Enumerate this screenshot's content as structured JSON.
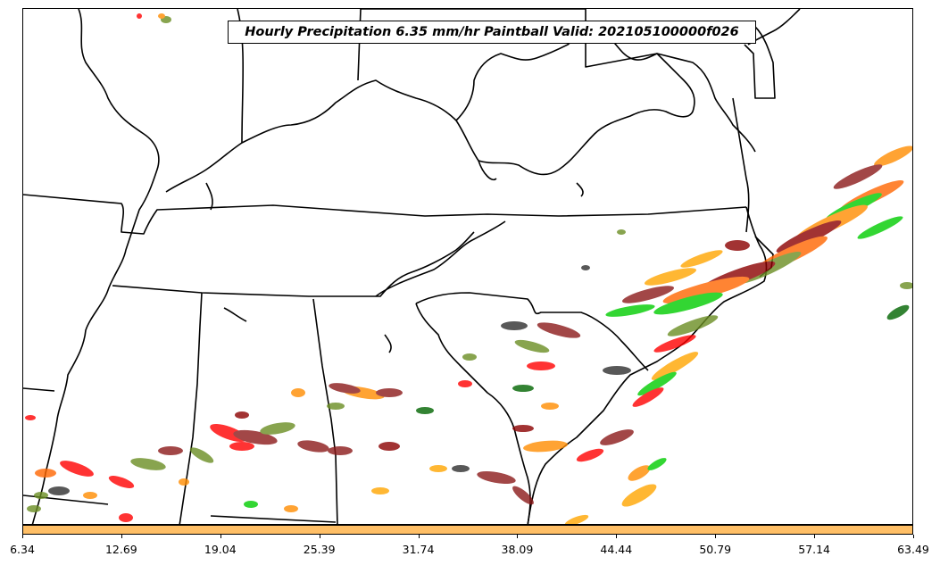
{
  "title": "Hourly Precipitation 6.35 mm/hr Paintball Valid: 202105100000f026",
  "colorbar": {
    "color": "#ffbf66",
    "tick_labels": [
      "6.34",
      "12.69",
      "19.04",
      "25.39",
      "31.74",
      "38.09",
      "44.44",
      "50.79",
      "57.14",
      "63.49"
    ]
  },
  "map": {
    "region": "Southeastern United States",
    "border_color": "#000000",
    "ensemble_colors": [
      "#ff0000",
      "#00cc00",
      "#ff8c00",
      "#8b0000",
      "#6b8e23",
      "#006400",
      "#2f2f2f",
      "#ff6600",
      "#ffa500",
      "#8b1a1a"
    ]
  }
}
